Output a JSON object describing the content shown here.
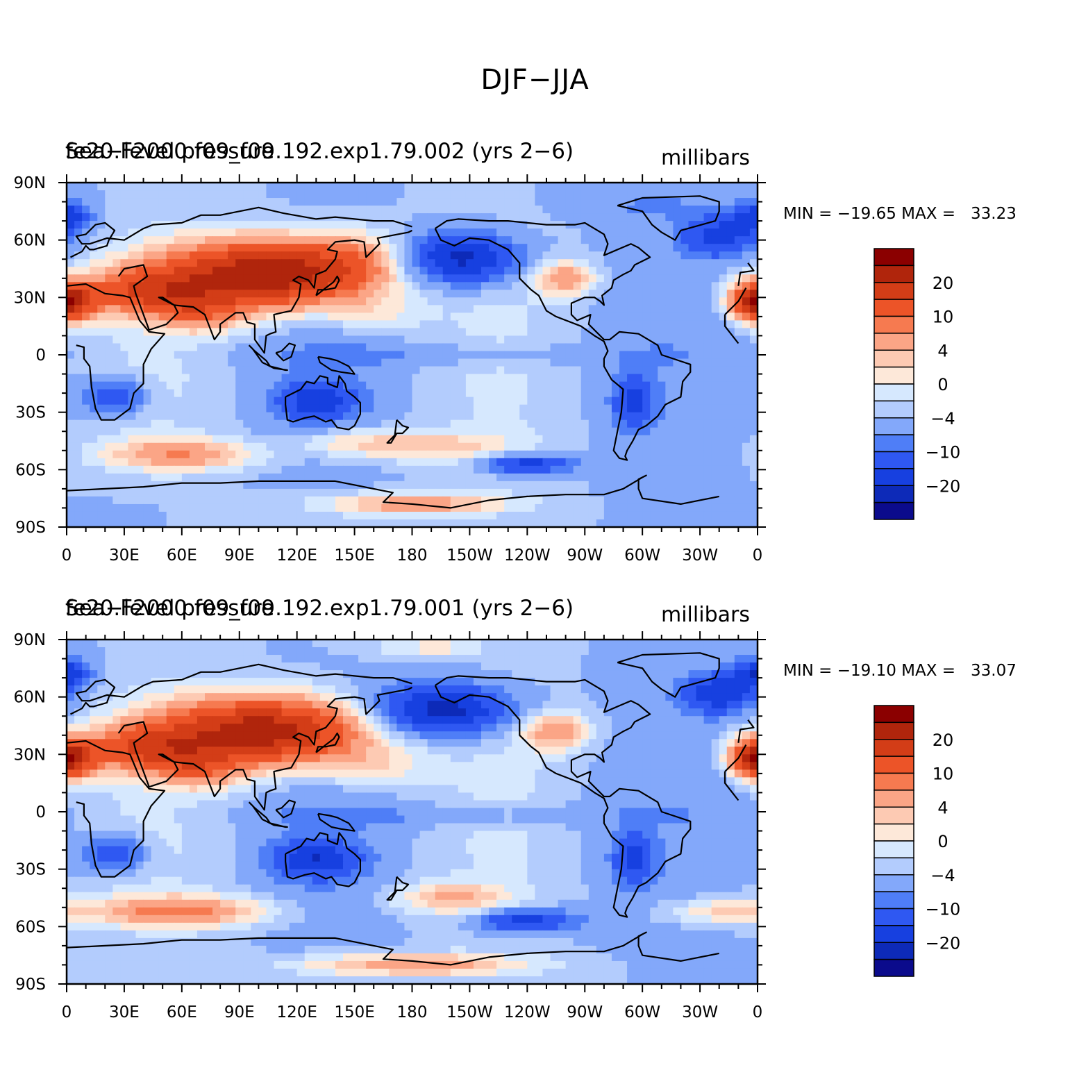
{
  "page": {
    "title": "DJF−JJA"
  },
  "colors": {
    "levels": [
      "#0b0b8c",
      "#0d2ab8",
      "#1740e0",
      "#2f58f2",
      "#4f7ef7",
      "#83a8fa",
      "#b3ccfd",
      "#d6e8fe",
      "#fde8d9",
      "#fdcab3",
      "#fba586",
      "#f67a50",
      "#ec5428",
      "#d33d17",
      "#b0250c",
      "#8b0000"
    ],
    "coast": "#000000"
  },
  "chart_data": [
    {
      "type": "heatmap",
      "name": "top",
      "title_left": "Sea−level pressure",
      "title_case": "fe20.F2000.f09_f09.192.exp1.79.002 (yrs 2−6)",
      "units": "millibars",
      "minmax": "MIN = −19.65 MAX =   33.23",
      "xlabel": "",
      "ylabel": "",
      "x_ticks": [
        "0",
        "30E",
        "60E",
        "90E",
        "120E",
        "150E",
        "180",
        "150W",
        "120W",
        "90W",
        "60W",
        "30W",
        "0"
      ],
      "y_ticks": [
        "90N",
        "60N",
        "30N",
        "0",
        "30S",
        "60S",
        "90S"
      ],
      "xlim": [
        0,
        360
      ],
      "ylim": [
        -90,
        90
      ],
      "features": [
        {
          "lon": 105,
          "lat": 42,
          "rx": 55,
          "ry": 18,
          "v": 29
        },
        {
          "lon": 40,
          "lat": 33,
          "rx": 32,
          "ry": 12,
          "v": 14
        },
        {
          "lon": 70,
          "lat": 22,
          "rx": 22,
          "ry": 10,
          "v": 8
        },
        {
          "lon": 150,
          "lat": 50,
          "rx": 28,
          "ry": 15,
          "v": 6
        },
        {
          "lon": 0,
          "lat": 28,
          "rx": 14,
          "ry": 10,
          "v": 14
        },
        {
          "lon": 360,
          "lat": 28,
          "rx": 14,
          "ry": 10,
          "v": 14
        },
        {
          "lon": 260,
          "lat": 40,
          "rx": 16,
          "ry": 9,
          "v": 10
        },
        {
          "lon": 205,
          "lat": 50,
          "rx": 30,
          "ry": 13,
          "v": -19
        },
        {
          "lon": 160,
          "lat": 20,
          "rx": 24,
          "ry": 10,
          "v": 4
        },
        {
          "lon": 0,
          "lat": 72,
          "rx": 12,
          "ry": 8,
          "v": -14
        },
        {
          "lon": 340,
          "lat": 62,
          "rx": 18,
          "ry": 10,
          "v": -14
        },
        {
          "lon": 305,
          "lat": 78,
          "rx": 40,
          "ry": 8,
          "v": -3
        },
        {
          "lon": 25,
          "lat": -22,
          "rx": 15,
          "ry": 9,
          "v": -12
        },
        {
          "lon": 130,
          "lat": -24,
          "rx": 20,
          "ry": 10,
          "v": -13
        },
        {
          "lon": 295,
          "lat": -25,
          "rx": 10,
          "ry": 13,
          "v": -12
        },
        {
          "lon": 200,
          "lat": 0,
          "rx": 100,
          "ry": 6,
          "v": -3
        },
        {
          "lon": 60,
          "lat": -52,
          "rx": 40,
          "ry": 8,
          "v": 10
        },
        {
          "lon": 150,
          "lat": -46,
          "rx": 30,
          "ry": 8,
          "v": 6
        },
        {
          "lon": 195,
          "lat": -48,
          "rx": 40,
          "ry": 8,
          "v": 6
        },
        {
          "lon": 240,
          "lat": -57,
          "rx": 22,
          "ry": 5,
          "v": -14
        },
        {
          "lon": 180,
          "lat": -78,
          "rx": 50,
          "ry": 6,
          "v": 10
        },
        {
          "lon": 25,
          "lat": -82,
          "rx": 20,
          "ry": 5,
          "v": -2
        }
      ],
      "background": -4,
      "legend_labels": [
        "20",
        "10",
        "4",
        "0",
        "−4",
        "−10",
        "−20"
      ]
    },
    {
      "type": "heatmap",
      "name": "bottom",
      "title_left": "Sea−level pressure",
      "title_case": "fe20.F2000.f09_f09.192.exp1.79.001 (yrs 2−6)",
      "units": "millibars",
      "minmax": "MIN = −19.10 MAX =   33.07",
      "xlabel": "",
      "ylabel": "",
      "x_ticks": [
        "0",
        "30E",
        "60E",
        "90E",
        "120E",
        "150E",
        "180",
        "150W",
        "120W",
        "90W",
        "60W",
        "30W",
        "0"
      ],
      "y_ticks": [
        "90N",
        "60N",
        "30N",
        "0",
        "30S",
        "60S",
        "90S"
      ],
      "xlim": [
        0,
        360
      ],
      "ylim": [
        -90,
        90
      ],
      "features": [
        {
          "lon": 105,
          "lat": 42,
          "rx": 55,
          "ry": 18,
          "v": 28
        },
        {
          "lon": 40,
          "lat": 33,
          "rx": 32,
          "ry": 12,
          "v": 14
        },
        {
          "lon": 70,
          "lat": 22,
          "rx": 22,
          "ry": 10,
          "v": 8
        },
        {
          "lon": 0,
          "lat": 28,
          "rx": 14,
          "ry": 10,
          "v": 14
        },
        {
          "lon": 360,
          "lat": 28,
          "rx": 14,
          "ry": 10,
          "v": 14
        },
        {
          "lon": 255,
          "lat": 42,
          "rx": 18,
          "ry": 10,
          "v": 10
        },
        {
          "lon": 195,
          "lat": 53,
          "rx": 35,
          "ry": 13,
          "v": -20
        },
        {
          "lon": 160,
          "lat": 22,
          "rx": 26,
          "ry": 10,
          "v": 5
        },
        {
          "lon": 190,
          "lat": 86,
          "rx": 30,
          "ry": 5,
          "v": 5
        },
        {
          "lon": 0,
          "lat": 72,
          "rx": 12,
          "ry": 8,
          "v": -15
        },
        {
          "lon": 340,
          "lat": 62,
          "rx": 18,
          "ry": 10,
          "v": -15
        },
        {
          "lon": 25,
          "lat": -22,
          "rx": 15,
          "ry": 9,
          "v": -12
        },
        {
          "lon": 130,
          "lat": -25,
          "rx": 22,
          "ry": 10,
          "v": -14
        },
        {
          "lon": 295,
          "lat": -25,
          "rx": 10,
          "ry": 13,
          "v": -12
        },
        {
          "lon": 200,
          "lat": -2,
          "rx": 100,
          "ry": 6,
          "v": -3
        },
        {
          "lon": 60,
          "lat": -52,
          "rx": 45,
          "ry": 8,
          "v": 12
        },
        {
          "lon": 200,
          "lat": -45,
          "rx": 30,
          "ry": 8,
          "v": 8
        },
        {
          "lon": 240,
          "lat": -57,
          "rx": 25,
          "ry": 6,
          "v": -14
        },
        {
          "lon": 340,
          "lat": -52,
          "rx": 30,
          "ry": 7,
          "v": 7
        },
        {
          "lon": 180,
          "lat": -80,
          "rx": 60,
          "ry": 6,
          "v": 10
        }
      ],
      "background": -4,
      "legend_labels": [
        "20",
        "10",
        "4",
        "0",
        "−4",
        "−10",
        "−20"
      ]
    }
  ]
}
